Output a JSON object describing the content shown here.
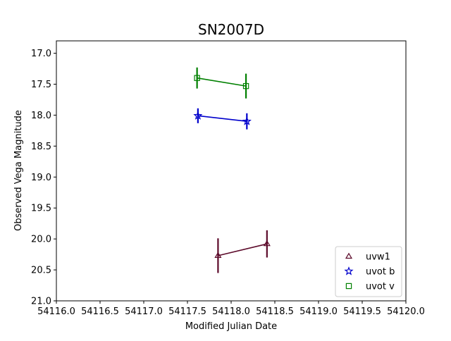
{
  "chart_data": {
    "type": "scatter",
    "title": "SN2007D",
    "xlabel": "Modified Julian Date",
    "ylabel": "Observed Vega Magnitude",
    "xlim": [
      54116.0,
      54120.0
    ],
    "ylim": [
      21.0,
      16.8
    ],
    "y_inverted": true,
    "xticks": [
      54116.0,
      54116.5,
      54117.0,
      54117.5,
      54118.0,
      54118.5,
      54119.0,
      54119.5,
      54120.0
    ],
    "xtick_labels": [
      "54116.0",
      "54116.5",
      "54117.0",
      "54117.5",
      "54118.0",
      "54118.5",
      "54119.0",
      "54119.5",
      "54120.0"
    ],
    "yticks": [
      17.0,
      17.5,
      18.0,
      18.5,
      19.0,
      19.5,
      20.0,
      20.5,
      21.0
    ],
    "ytick_labels": [
      "17.0",
      "17.5",
      "18.0",
      "18.5",
      "19.0",
      "19.5",
      "20.0",
      "20.5",
      "21.0"
    ],
    "grid": false,
    "legend_position": "lower-right",
    "series": [
      {
        "name": "uvw1",
        "color": "#5c0a2a",
        "marker": "triangle",
        "x": [
          54117.85,
          54118.41
        ],
        "y": [
          20.27,
          20.08
        ],
        "yerr": [
          0.28,
          0.22
        ]
      },
      {
        "name": "uvot b",
        "color": "#0000cc",
        "marker": "star",
        "x": [
          54117.62,
          54118.18
        ],
        "y": [
          18.01,
          18.1
        ],
        "yerr": [
          0.12,
          0.13
        ]
      },
      {
        "name": "uvot v",
        "color": "#008000",
        "marker": "square",
        "x": [
          54117.61,
          54118.17
        ],
        "y": [
          17.4,
          17.53
        ],
        "yerr": [
          0.17,
          0.2
        ]
      }
    ]
  }
}
